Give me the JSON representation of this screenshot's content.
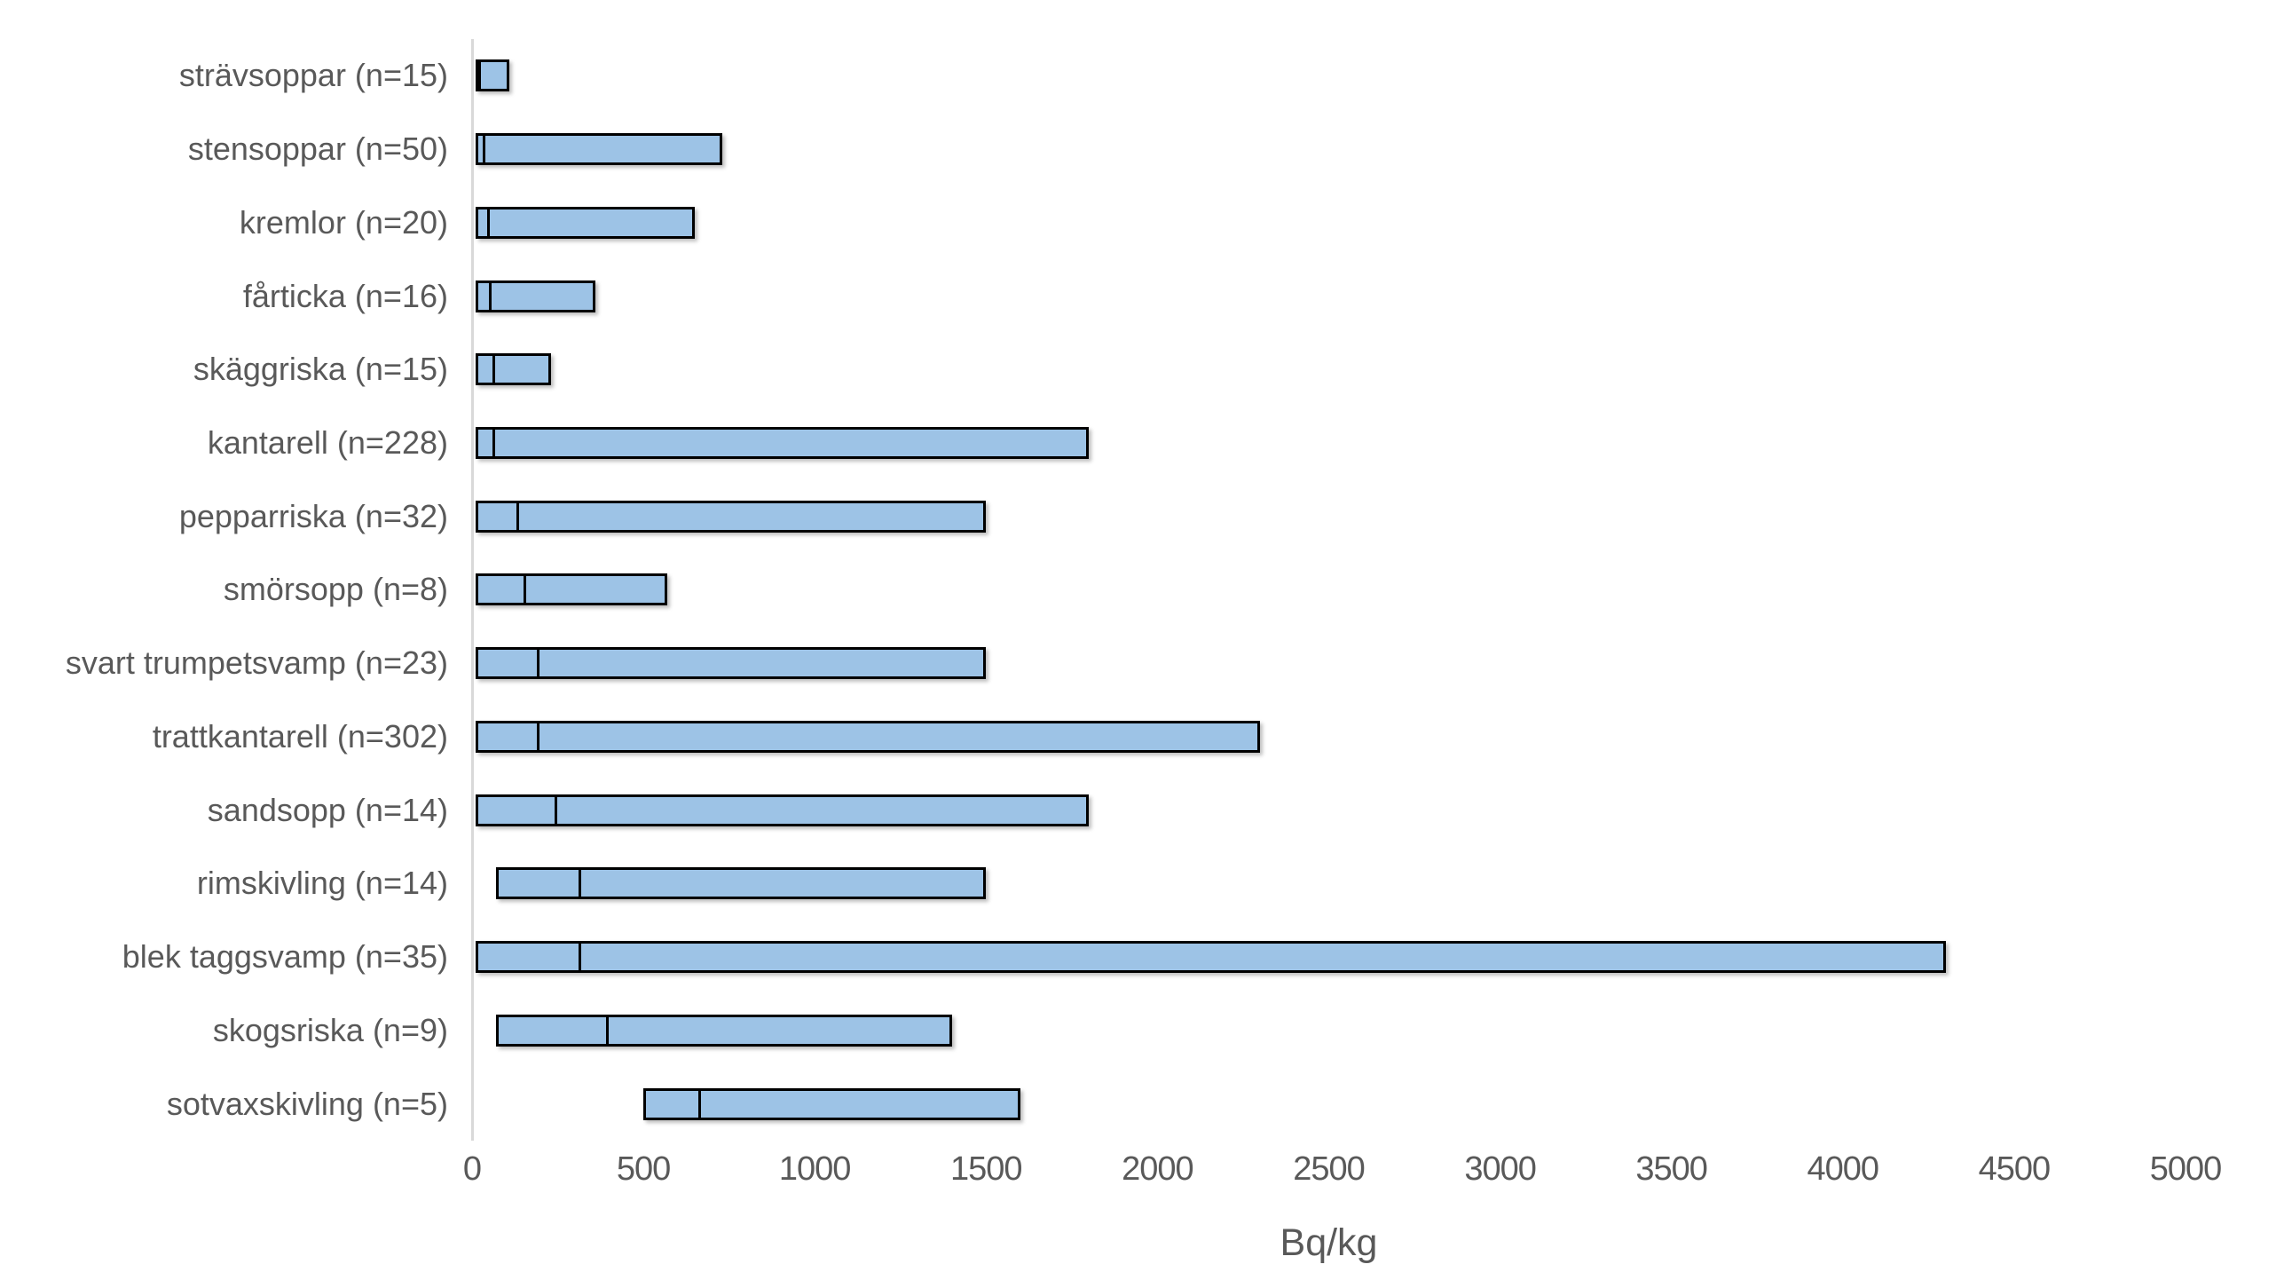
{
  "colors": {
    "background": "#FFFFFF",
    "bar_fill": "#9DC3E6",
    "bar_border": "#000000",
    "median_line": "#000000",
    "axis_line": "#D9D9D9",
    "text": "#595959"
  },
  "chart_data": {
    "type": "bar",
    "subtype": "horizontal-range-bar-with-median-line",
    "title": "",
    "xlabel": "Bq/kg",
    "ylabel": "",
    "xlim": [
      0,
      5000
    ],
    "x_ticks": [
      0,
      500,
      1000,
      1500,
      2000,
      2500,
      3000,
      3500,
      4000,
      4500,
      5000
    ],
    "grid": false,
    "legend": false,
    "categories": [
      "strävsoppar (n=15)",
      "stensoppar (n=50)",
      "kremlor (n=20)",
      "fårticka (n=16)",
      "skäggriska (n=15)",
      "kantarell (n=228)",
      "pepparriska (n=32)",
      "smörsopp (n=8)",
      "svart trumpetsvamp (n=23)",
      "trattkantarell (n=302)",
      "sandsopp (n=14)",
      "rimskivling (n=14)",
      "blek taggsvamp (n=35)",
      "skogsriska (n=9)",
      "sotvaxskivling (n=5)"
    ],
    "bars": [
      {
        "label": "strävsoppar (n=15)",
        "min": 10,
        "median": 15,
        "max": 110
      },
      {
        "label": "stensoppar (n=50)",
        "min": 10,
        "median": 30,
        "max": 730
      },
      {
        "label": "kremlor (n=20)",
        "min": 10,
        "median": 45,
        "max": 650
      },
      {
        "label": "fårticka (n=16)",
        "min": 10,
        "median": 50,
        "max": 360
      },
      {
        "label": "skäggriska (n=15)",
        "min": 10,
        "median": 60,
        "max": 230
      },
      {
        "label": "kantarell (n=228)",
        "min": 10,
        "median": 60,
        "max": 1800
      },
      {
        "label": "pepparriska (n=32)",
        "min": 10,
        "median": 130,
        "max": 1500
      },
      {
        "label": "smörsopp (n=8)",
        "min": 10,
        "median": 150,
        "max": 570
      },
      {
        "label": "svart trumpetsvamp (n=23)",
        "min": 10,
        "median": 190,
        "max": 1500
      },
      {
        "label": "trattkantarell (n=302)",
        "min": 10,
        "median": 190,
        "max": 2300
      },
      {
        "label": "sandsopp (n=14)",
        "min": 10,
        "median": 240,
        "max": 1800
      },
      {
        "label": "rimskivling (n=14)",
        "min": 70,
        "median": 310,
        "max": 1500
      },
      {
        "label": "blek taggsvamp (n=35)",
        "min": 10,
        "median": 310,
        "max": 4300
      },
      {
        "label": "skogsriska (n=9)",
        "min": 70,
        "median": 390,
        "max": 1400
      },
      {
        "label": "sotvaxskivling (n=5)",
        "min": 500,
        "median": 660,
        "max": 1600
      }
    ]
  }
}
